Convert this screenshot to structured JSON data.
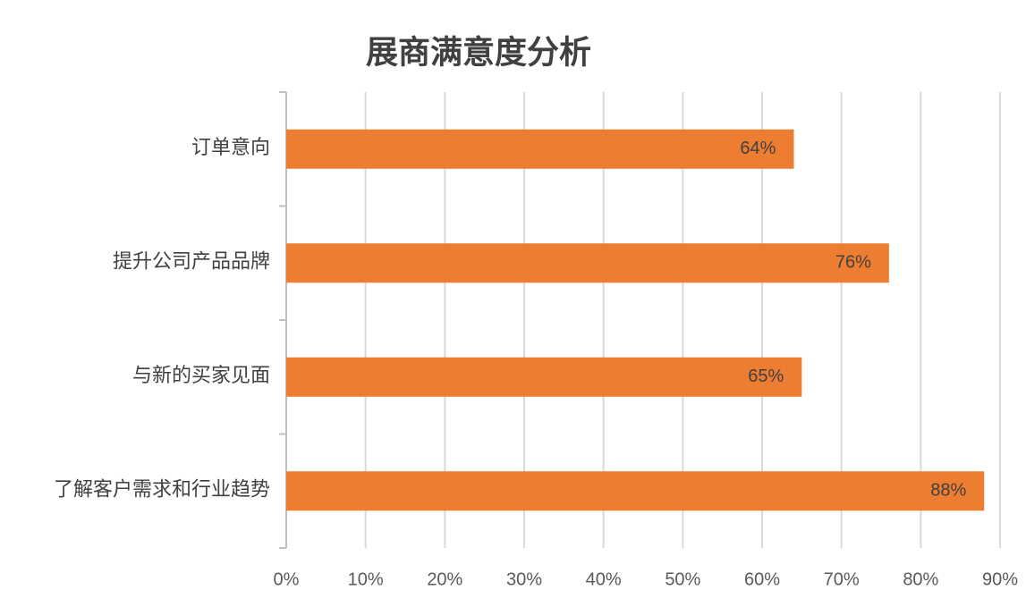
{
  "chart_data": {
    "type": "bar",
    "orientation": "horizontal",
    "title": "展商满意度分析",
    "categories": [
      "订单意向",
      "提升公司产品品牌",
      "与新的买家见面",
      "了解客户需求和行业趋势"
    ],
    "values": [
      64,
      76,
      65,
      88
    ],
    "value_labels": [
      "64%",
      "76%",
      "65%",
      "88%"
    ],
    "color": "#ed7d31",
    "xlim": [
      0,
      90
    ],
    "xticks": [
      {
        "value": 0,
        "label": "0%"
      },
      {
        "value": 10,
        "label": "10%"
      },
      {
        "value": 20,
        "label": "20%"
      },
      {
        "value": 30,
        "label": "30%"
      },
      {
        "value": 40,
        "label": "40%"
      },
      {
        "value": 50,
        "label": "50%"
      },
      {
        "value": 60,
        "label": "60%"
      },
      {
        "value": 70,
        "label": "70%"
      },
      {
        "value": 80,
        "label": "80%"
      },
      {
        "value": 90,
        "label": "90%"
      }
    ],
    "grid": true
  }
}
